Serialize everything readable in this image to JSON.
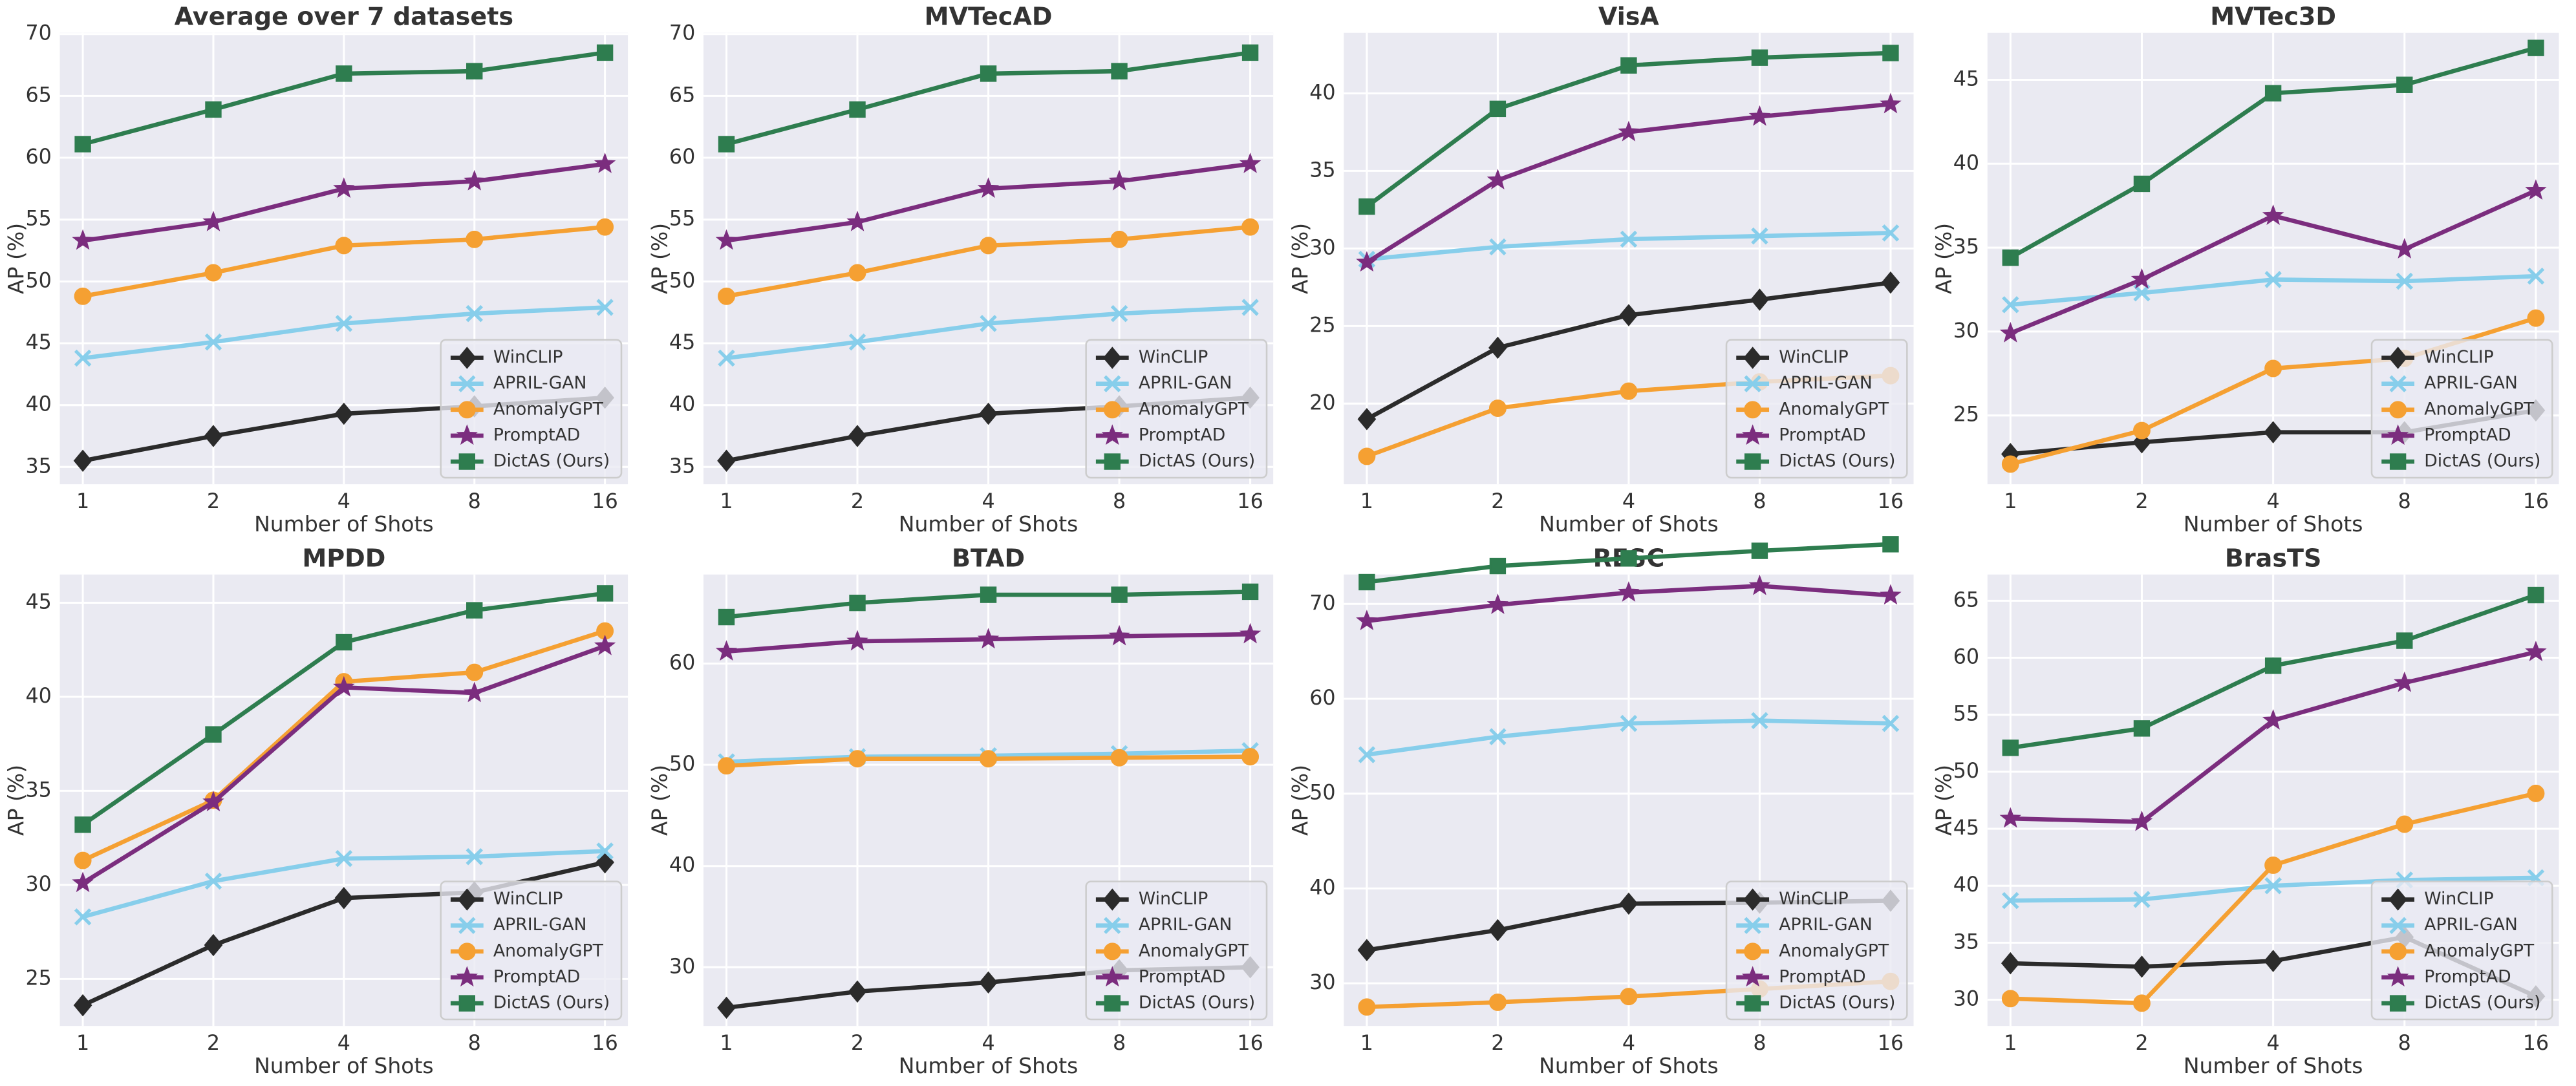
{
  "chart_data": [
    {
      "type": "line",
      "title": "Average over 7 datasets",
      "x_label": "Number of Shots",
      "y_label": "AP (%)",
      "categories": [
        "1",
        "2",
        "4",
        "8",
        "16"
      ],
      "ylim": [
        33.6,
        70.1
      ],
      "yticks": [
        35,
        40,
        45,
        50,
        55,
        60,
        65,
        70
      ],
      "grid": true,
      "legend": "lower right",
      "series": [
        {
          "name": "WinCLIP",
          "color": "#2b2b2b",
          "marker": "D",
          "values": [
            35.5,
            37.5,
            39.3,
            39.9,
            40.6
          ]
        },
        {
          "name": "APRIL-GAN",
          "color": "#87ceeb",
          "marker": "x",
          "values": [
            43.8,
            45.1,
            46.6,
            47.4,
            47.9
          ]
        },
        {
          "name": "AnomalyGPT",
          "color": "#f5a032",
          "marker": "o",
          "values": [
            48.8,
            50.7,
            52.9,
            53.4,
            54.4
          ]
        },
        {
          "name": "PromptAD",
          "color": "#7b2d7e",
          "marker": "*",
          "values": [
            53.3,
            54.8,
            57.5,
            58.1,
            59.5
          ]
        },
        {
          "name": "DictAS (Ours)",
          "color": "#2e7d4f",
          "marker": "s",
          "values": [
            61.1,
            63.9,
            66.8,
            67.0,
            68.5
          ]
        }
      ]
    },
    {
      "type": "line",
      "title": "MVTecAD",
      "x_label": "Number of Shots",
      "y_label": "AP (%)",
      "categories": [
        "1",
        "2",
        "4",
        "8",
        "16"
      ],
      "ylim": [
        33.6,
        70.1
      ],
      "yticks": [
        35,
        40,
        45,
        50,
        55,
        60,
        65,
        70
      ],
      "grid": true,
      "legend": "lower right",
      "series": [
        {
          "name": "WinCLIP",
          "color": "#2b2b2b",
          "marker": "D",
          "values": [
            35.5,
            37.5,
            39.3,
            39.9,
            40.6
          ]
        },
        {
          "name": "APRIL-GAN",
          "color": "#87ceeb",
          "marker": "x",
          "values": [
            43.8,
            45.1,
            46.6,
            47.4,
            47.9
          ]
        },
        {
          "name": "AnomalyGPT",
          "color": "#f5a032",
          "marker": "o",
          "values": [
            48.8,
            50.7,
            52.9,
            53.4,
            54.4
          ]
        },
        {
          "name": "PromptAD",
          "color": "#7b2d7e",
          "marker": "*",
          "values": [
            53.3,
            54.8,
            57.5,
            58.1,
            59.5
          ]
        },
        {
          "name": "DictAS (Ours)",
          "color": "#2e7d4f",
          "marker": "s",
          "values": [
            61.1,
            63.9,
            66.8,
            67.0,
            68.5
          ]
        }
      ]
    },
    {
      "type": "line",
      "title": "VisA",
      "x_label": "Number of Shots",
      "y_label": "AP (%)",
      "categories": [
        "1",
        "2",
        "4",
        "8",
        "16"
      ],
      "ylim": [
        14.8,
        43.9
      ],
      "yticks": [
        20,
        25,
        30,
        35,
        40
      ],
      "grid": true,
      "legend": "lower right",
      "series": [
        {
          "name": "WinCLIP",
          "color": "#2b2b2b",
          "marker": "D",
          "values": [
            19.0,
            23.6,
            25.7,
            26.7,
            27.8
          ]
        },
        {
          "name": "APRIL-GAN",
          "color": "#87ceeb",
          "marker": "x",
          "values": [
            29.3,
            30.1,
            30.6,
            30.8,
            31.0
          ]
        },
        {
          "name": "AnomalyGPT",
          "color": "#f5a032",
          "marker": "o",
          "values": [
            16.6,
            19.7,
            20.8,
            21.4,
            21.8
          ]
        },
        {
          "name": "PromptAD",
          "color": "#7b2d7e",
          "marker": "*",
          "values": [
            29.1,
            34.4,
            37.5,
            38.5,
            39.3
          ]
        },
        {
          "name": "DictAS (Ours)",
          "color": "#2e7d4f",
          "marker": "s",
          "values": [
            32.7,
            39.0,
            41.8,
            42.3,
            42.6
          ]
        }
      ]
    },
    {
      "type": "line",
      "title": "MVTec3D",
      "x_label": "Number of Shots",
      "y_label": "AP (%)",
      "categories": [
        "1",
        "2",
        "4",
        "8",
        "16"
      ],
      "ylim": [
        20.9,
        47.8
      ],
      "yticks": [
        25,
        30,
        35,
        40,
        45
      ],
      "grid": true,
      "legend": "lower right",
      "series": [
        {
          "name": "WinCLIP",
          "color": "#2b2b2b",
          "marker": "D",
          "values": [
            22.7,
            23.4,
            24.0,
            24.0,
            25.3
          ]
        },
        {
          "name": "APRIL-GAN",
          "color": "#87ceeb",
          "marker": "x",
          "values": [
            31.6,
            32.3,
            33.1,
            33.0,
            33.3
          ]
        },
        {
          "name": "AnomalyGPT",
          "color": "#f5a032",
          "marker": "o",
          "values": [
            22.1,
            24.1,
            27.8,
            28.4,
            30.8
          ]
        },
        {
          "name": "PromptAD",
          "color": "#7b2d7e",
          "marker": "*",
          "values": [
            29.9,
            33.1,
            36.9,
            34.9,
            38.4
          ]
        },
        {
          "name": "DictAS (Ours)",
          "color": "#2e7d4f",
          "marker": "s",
          "values": [
            34.4,
            38.8,
            44.2,
            44.7,
            46.9
          ]
        }
      ]
    },
    {
      "type": "line",
      "title": "MPDD",
      "x_label": "Number of Shots",
      "y_label": "AP (%)",
      "categories": [
        "1",
        "2",
        "4",
        "8",
        "16"
      ],
      "ylim": [
        22.5,
        46.5
      ],
      "yticks": [
        25,
        30,
        35,
        40,
        45
      ],
      "grid": true,
      "legend": "lower right",
      "series": [
        {
          "name": "WinCLIP",
          "color": "#2b2b2b",
          "marker": "D",
          "values": [
            23.6,
            26.8,
            29.3,
            29.6,
            31.2
          ]
        },
        {
          "name": "APRIL-GAN",
          "color": "#87ceeb",
          "marker": "x",
          "values": [
            28.3,
            30.2,
            31.4,
            31.5,
            31.8
          ]
        },
        {
          "name": "AnomalyGPT",
          "color": "#f5a032",
          "marker": "o",
          "values": [
            31.3,
            34.5,
            40.8,
            41.3,
            43.5
          ]
        },
        {
          "name": "PromptAD",
          "color": "#7b2d7e",
          "marker": "*",
          "values": [
            30.1,
            34.4,
            40.5,
            40.2,
            42.7
          ]
        },
        {
          "name": "DictAS (Ours)",
          "color": "#2e7d4f",
          "marker": "s",
          "values": [
            33.2,
            38.0,
            42.9,
            44.6,
            45.5
          ]
        }
      ]
    },
    {
      "type": "line",
      "title": "BTAD",
      "x_label": "Number of Shots",
      "y_label": "AP (%)",
      "categories": [
        "1",
        "2",
        "4",
        "8",
        "16"
      ],
      "ylim": [
        24.2,
        68.8
      ],
      "yticks": [
        30,
        40,
        50,
        60
      ],
      "grid": true,
      "legend": "lower right",
      "series": [
        {
          "name": "WinCLIP",
          "color": "#2b2b2b",
          "marker": "D",
          "values": [
            26.0,
            27.6,
            28.5,
            29.7,
            30.0
          ]
        },
        {
          "name": "APRIL-GAN",
          "color": "#87ceeb",
          "marker": "x",
          "values": [
            50.3,
            50.8,
            50.9,
            51.1,
            51.4
          ]
        },
        {
          "name": "AnomalyGPT",
          "color": "#f5a032",
          "marker": "o",
          "values": [
            49.9,
            50.6,
            50.6,
            50.7,
            50.8
          ]
        },
        {
          "name": "PromptAD",
          "color": "#7b2d7e",
          "marker": "*",
          "values": [
            61.2,
            62.2,
            62.4,
            62.7,
            62.9
          ]
        },
        {
          "name": "DictAS (Ours)",
          "color": "#2e7d4f",
          "marker": "s",
          "values": [
            64.6,
            66.0,
            66.8,
            66.8,
            67.1
          ]
        }
      ]
    },
    {
      "type": "line",
      "title": "RESC",
      "x_label": "Number of Shots",
      "y_label": "AP (%)",
      "categories": [
        "1",
        "2",
        "4",
        "8",
        "16"
      ],
      "ylim": [
        25.5,
        73.1
      ],
      "yticks": [
        30,
        40,
        50,
        60,
        70
      ],
      "grid": true,
      "legend": "lower right",
      "series": [
        {
          "name": "WinCLIP",
          "color": "#2b2b2b",
          "marker": "D",
          "values": [
            33.5,
            35.6,
            38.4,
            38.5,
            38.7
          ]
        },
        {
          "name": "APRIL-GAN",
          "color": "#87ceeb",
          "marker": "x",
          "values": [
            54.1,
            56.0,
            57.4,
            57.7,
            57.4
          ]
        },
        {
          "name": "AnomalyGPT",
          "color": "#f5a032",
          "marker": "o",
          "values": [
            27.5,
            28.0,
            28.6,
            29.4,
            30.2
          ]
        },
        {
          "name": "PromptAD",
          "color": "#7b2d7e",
          "marker": "*",
          "values": [
            68.2,
            69.9,
            71.2,
            71.9,
            70.9
          ]
        },
        {
          "name": "DictAS (Ours)",
          "color": "#2e7d4f",
          "marker": "s",
          "values": [
            72.3,
            74.0,
            74.8,
            75.6,
            76.3
          ]
        }
      ]
    },
    {
      "type": "line",
      "title": "BrasTS",
      "x_label": "Number of Shots",
      "y_label": "AP (%)",
      "categories": [
        "1",
        "2",
        "4",
        "8",
        "16"
      ],
      "ylim": [
        27.7,
        67.3
      ],
      "yticks": [
        30,
        35,
        40,
        45,
        50,
        55,
        60,
        65
      ],
      "grid": true,
      "legend": "lower right",
      "series": [
        {
          "name": "WinCLIP",
          "color": "#2b2b2b",
          "marker": "D",
          "values": [
            33.2,
            32.9,
            33.4,
            35.5,
            30.3
          ]
        },
        {
          "name": "APRIL-GAN",
          "color": "#87ceeb",
          "marker": "x",
          "values": [
            38.7,
            38.8,
            40.0,
            40.5,
            40.7
          ]
        },
        {
          "name": "AnomalyGPT",
          "color": "#f5a032",
          "marker": "o",
          "values": [
            30.1,
            29.7,
            41.8,
            45.4,
            48.1
          ]
        },
        {
          "name": "PromptAD",
          "color": "#7b2d7e",
          "marker": "*",
          "values": [
            45.9,
            45.6,
            54.5,
            57.8,
            60.5
          ]
        },
        {
          "name": "DictAS (Ours)",
          "color": "#2e7d4f",
          "marker": "s",
          "values": [
            52.1,
            53.8,
            59.3,
            61.5,
            65.5
          ]
        }
      ]
    }
  ]
}
